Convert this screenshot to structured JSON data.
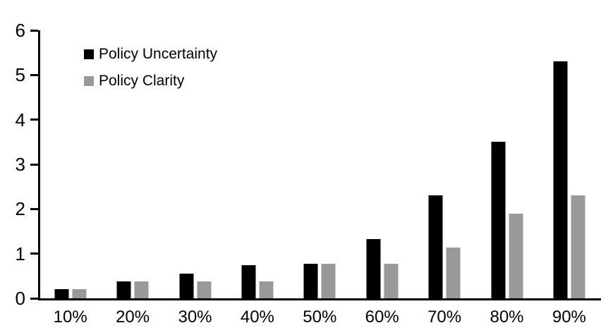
{
  "chart_data": {
    "type": "bar",
    "title": "",
    "xlabel": "",
    "ylabel": "",
    "categories": [
      "10%",
      "20%",
      "30%",
      "40%",
      "50%",
      "60%",
      "70%",
      "80%",
      "90%"
    ],
    "series": [
      {
        "name": "Policy Uncertainty",
        "color": "#000000",
        "values": [
          0.2,
          0.38,
          0.56,
          0.75,
          0.77,
          1.32,
          2.3,
          3.5,
          5.3
        ]
      },
      {
        "name": "Policy Clarity",
        "color": "#999999",
        "values": [
          0.2,
          0.38,
          0.38,
          0.38,
          0.77,
          0.77,
          1.13,
          1.9,
          2.3
        ]
      }
    ],
    "ylim": [
      0,
      6
    ],
    "yticks": [
      0,
      1,
      2,
      3,
      4,
      5,
      6
    ],
    "grid": false,
    "legend_position": "top-left",
    "axis_color": "#000000",
    "background_color": "#ffffff"
  }
}
